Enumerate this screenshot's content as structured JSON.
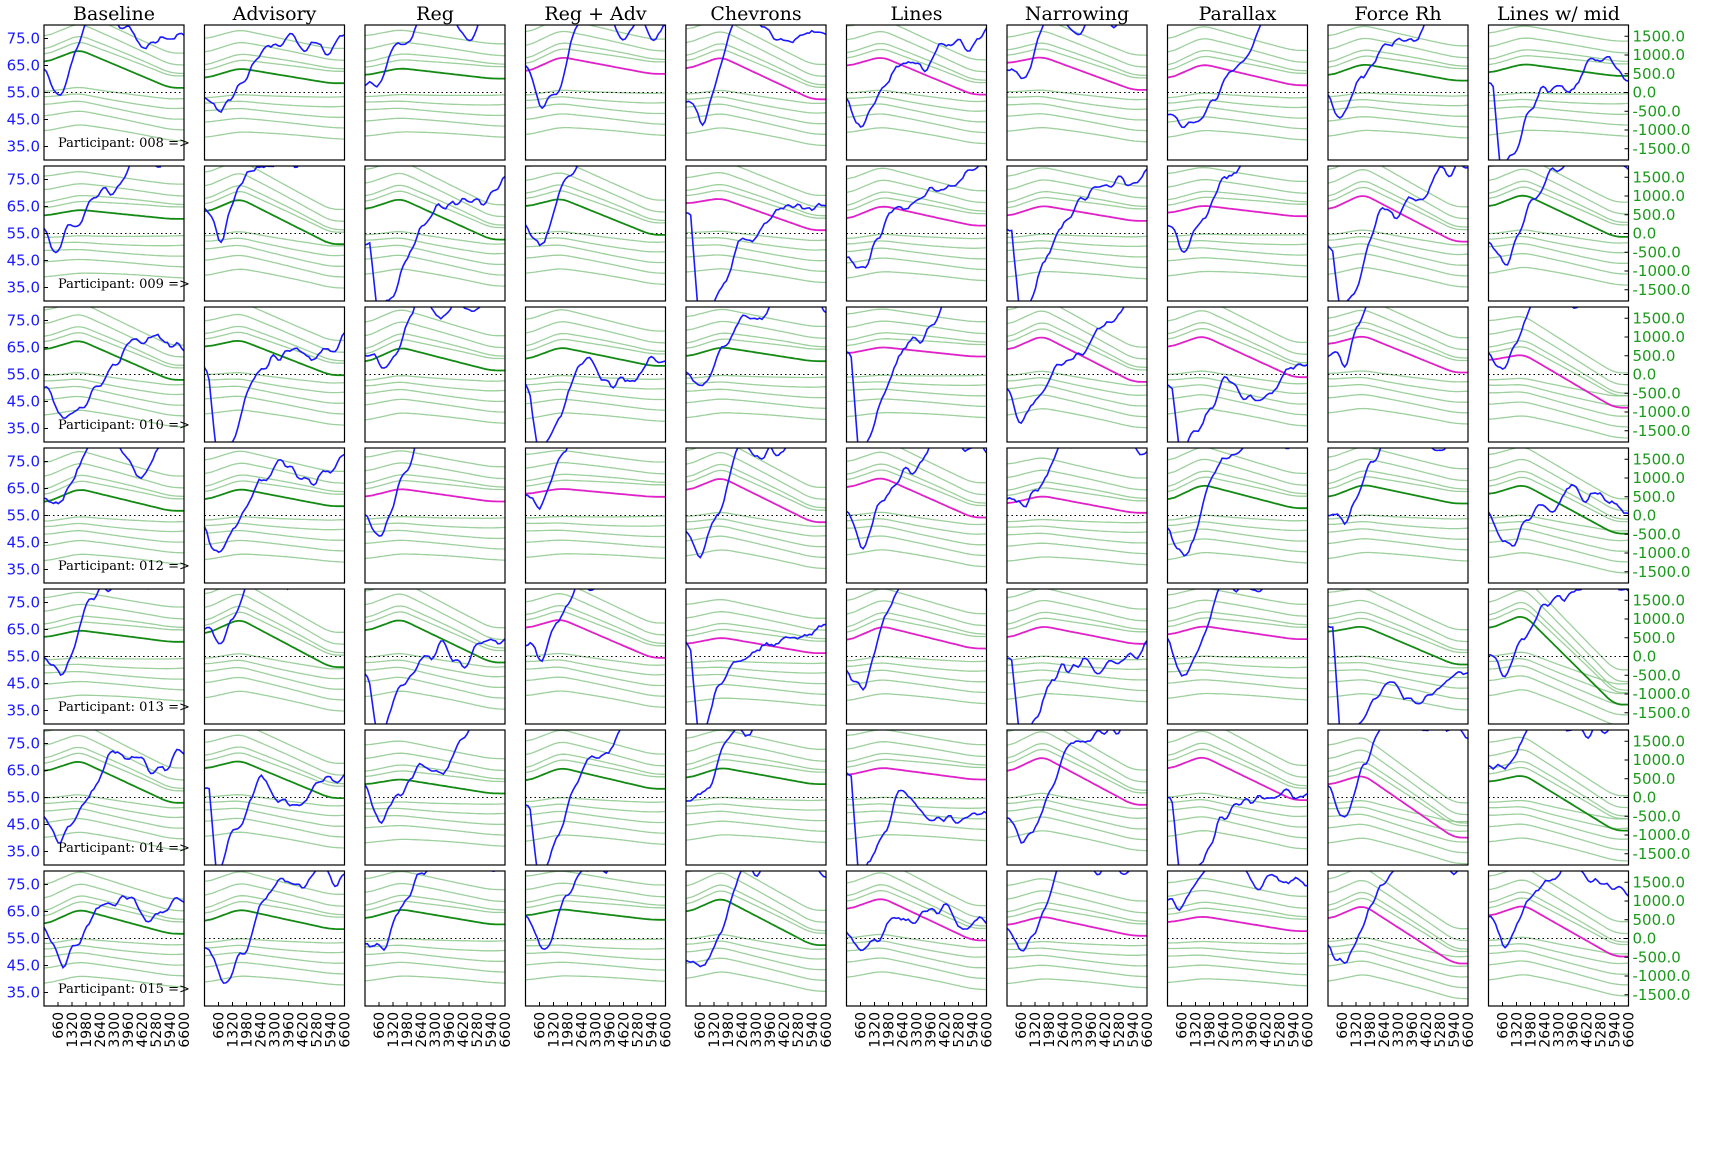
{
  "chart_data": {
    "type": "line",
    "columns": [
      "Baseline",
      "Advisory",
      "Reg",
      "Reg + Adv",
      "Chevrons",
      "Lines",
      "Narrowing",
      "Parallax",
      "Force Rh",
      "Lines w/ mid"
    ],
    "rows": [
      {
        "participant": "008",
        "label": "Participant: 008 =>"
      },
      {
        "participant": "009",
        "label": "Participant: 009 =>"
      },
      {
        "participant": "010",
        "label": "Participant: 010 =>"
      },
      {
        "participant": "012",
        "label": "Participant: 012 =>"
      },
      {
        "participant": "013",
        "label": "Participant: 013 =>"
      },
      {
        "participant": "014",
        "label": "Participant: 014 =>"
      },
      {
        "participant": "015",
        "label": "Participant: 015 =>"
      }
    ],
    "x_ticks": [
      "660",
      "1320",
      "1980",
      "2640",
      "3300",
      "3960",
      "4620",
      "5280",
      "5940",
      "6600"
    ],
    "xlim": [
      0,
      6600
    ],
    "y_left_ticks": [
      "75.0",
      "65.0",
      "55.0",
      "45.0",
      "35.0"
    ],
    "y_left_lim": [
      30,
      80
    ],
    "y_right_ticks": [
      "1500.0",
      "1000.0",
      "500.0",
      "0.0",
      "-500.0",
      "-1000.0",
      "-1500.0"
    ],
    "y_right_lim": [
      -1800,
      1800
    ],
    "reference_line": {
      "axis": "left",
      "value": 55,
      "style": "dotted"
    },
    "colors": {
      "speed": "#1a1aff",
      "mean": "#138a13",
      "mean_alt": "#e020c8",
      "band": "#8cc88c",
      "right_axis": "#1a9a1a",
      "left_axis": "#1a1aff"
    },
    "series_description": [
      "speed (blue, left axis)",
      "mean trajectory (dark green or magenta, right axis)",
      "percentile band lines (light green, right axis)"
    ]
  }
}
